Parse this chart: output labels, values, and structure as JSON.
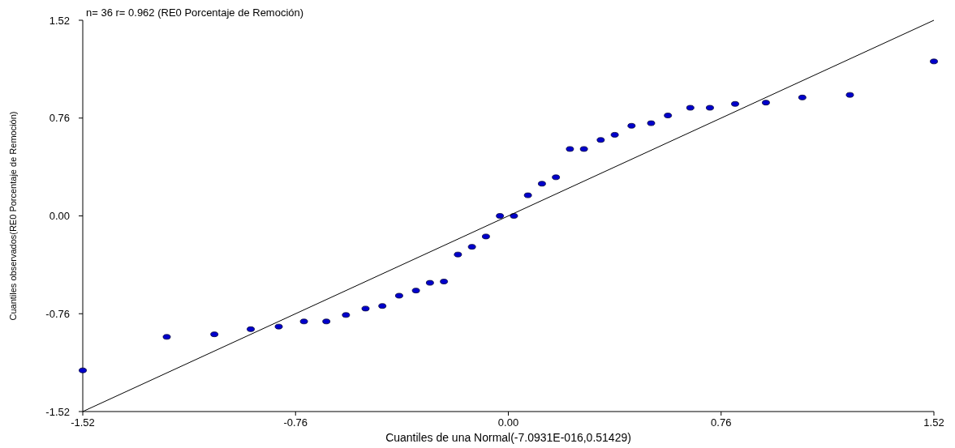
{
  "chart_data": {
    "type": "scatter",
    "title": "n= 36 r= 0.962 (RE0 Porcentaje de Remoción)",
    "xlabel": "Cuantiles de una Normal(-7.0931E-016,0.51429)",
    "ylabel": "Cuantiles observados(RE0 Porcentaje de Remoción)",
    "xlim": [
      -1.52,
      1.52
    ],
    "ylim": [
      -1.52,
      1.52
    ],
    "xticks": [
      -1.52,
      -0.76,
      {
        "value": 0,
        "label": "0.00"
      },
      0.76,
      1.52
    ],
    "yticks": [
      -1.52,
      -0.76,
      {
        "value": 0,
        "label": "0.00"
      },
      0.76,
      1.52
    ],
    "grid": false,
    "marker": "circle",
    "series": [
      {
        "color": "#0000cc",
        "x": [
          -1.52,
          -1.22,
          -1.05,
          -0.92,
          -0.82,
          -0.73,
          -0.65,
          -0.58,
          -0.51,
          -0.45,
          -0.39,
          -0.33,
          -0.28,
          -0.23,
          -0.18,
          -0.13,
          -0.08,
          -0.03,
          0.02,
          0.07,
          0.12,
          0.17,
          0.22,
          0.27,
          0.33,
          0.38,
          0.44,
          0.51,
          0.57,
          0.65,
          0.72,
          0.81,
          0.92,
          1.05,
          1.22,
          1.52
        ],
        "values": [
          -1.2,
          -0.94,
          -0.92,
          -0.88,
          -0.86,
          -0.82,
          -0.82,
          -0.77,
          -0.72,
          -0.7,
          -0.62,
          -0.58,
          -0.52,
          -0.51,
          -0.3,
          -0.24,
          -0.16,
          0.0,
          0.0,
          0.16,
          0.25,
          0.3,
          0.52,
          0.52,
          0.59,
          0.63,
          0.7,
          0.72,
          0.78,
          0.84,
          0.84,
          0.87,
          0.88,
          0.92,
          0.94,
          1.2
        ]
      },
      {
        "type": "line",
        "color": "#000000",
        "marker": "none",
        "x": [
          -1.52,
          1.52
        ],
        "values": [
          -1.52,
          1.52
        ]
      }
    ]
  }
}
